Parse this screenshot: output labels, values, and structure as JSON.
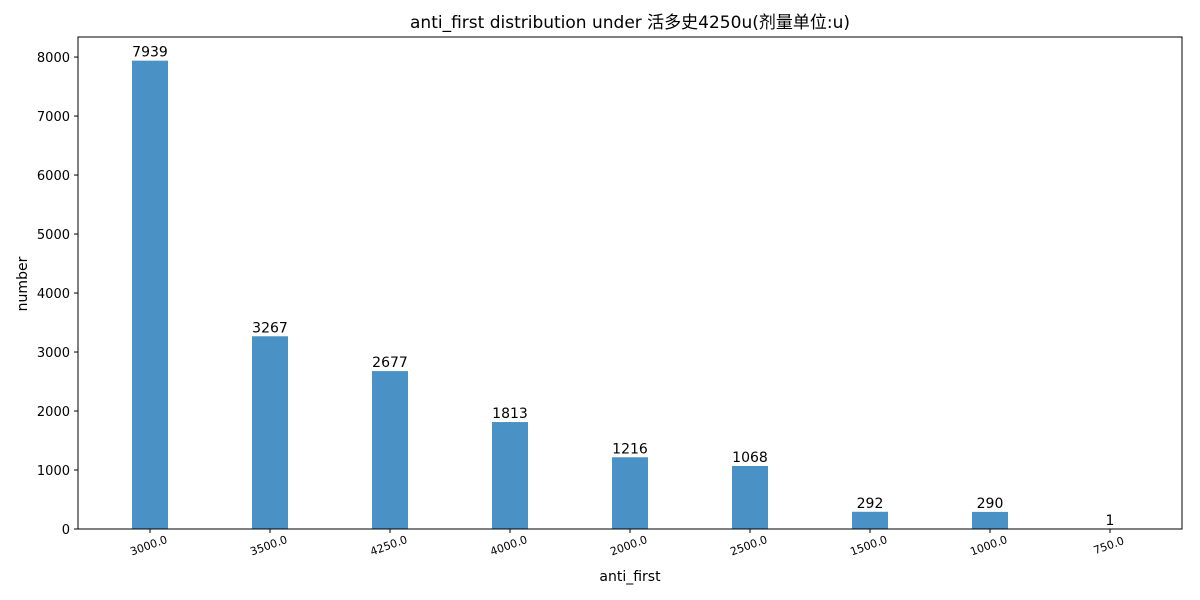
{
  "chart_data": {
    "type": "bar",
    "title": "anti_first distribution under 活多史4250u(剂量单位:u)",
    "xlabel": "anti_first",
    "ylabel": "number",
    "categories": [
      "3000.0",
      "3500.0",
      "4250.0",
      "4000.0",
      "2000.0",
      "2500.0",
      "1500.0",
      "1000.0",
      "750.0"
    ],
    "values": [
      7939,
      3267,
      2677,
      1813,
      1216,
      1068,
      292,
      290,
      1
    ],
    "data_labels": [
      "7939",
      "3267",
      "2677",
      "1813",
      "1216",
      "1068",
      "292",
      "290",
      "1"
    ],
    "ylim": [
      0,
      8340
    ],
    "yticks": [
      0,
      1000,
      2000,
      3000,
      4000,
      5000,
      6000,
      7000,
      8000
    ],
    "ytick_labels": [
      "0",
      "1000",
      "2000",
      "3000",
      "4000",
      "5000",
      "6000",
      "7000",
      "8000"
    ],
    "grid": false,
    "bar_color": "#4a92c5"
  }
}
